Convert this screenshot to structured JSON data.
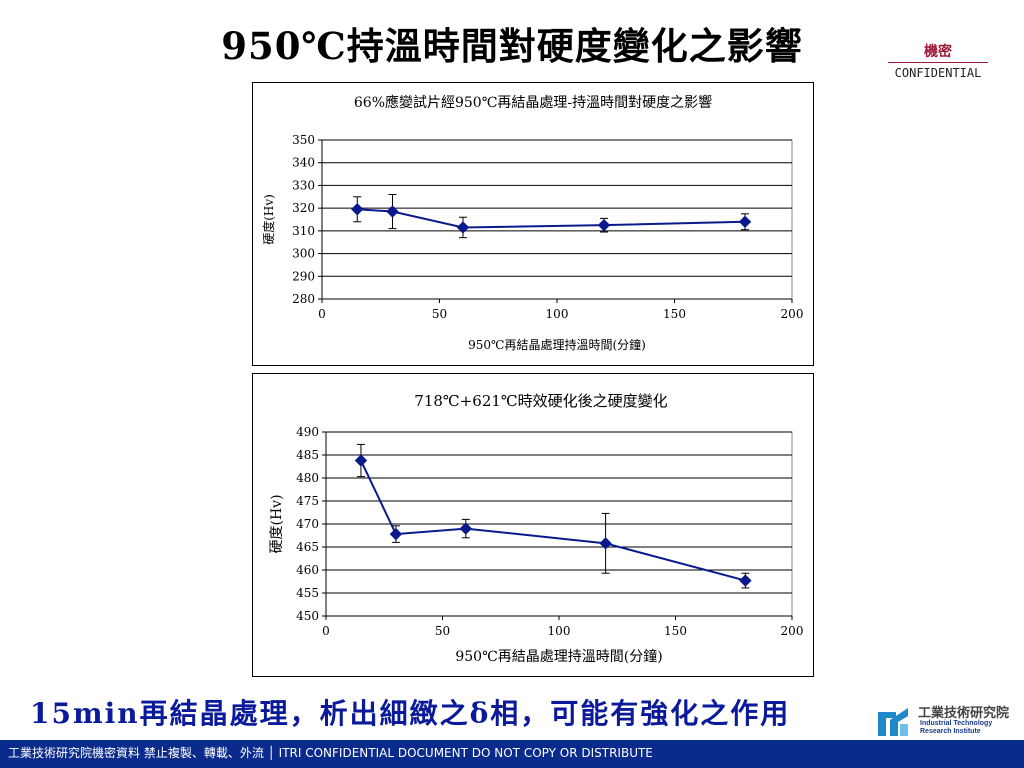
{
  "slide": {
    "title": "950℃持溫時間對硬度變化之影響",
    "confidential_cn": "機密",
    "confidential_en": "CONFIDENTIAL",
    "bottom_text": "15min再結晶處理，析出細緻之δ相，可能有強化之作用",
    "footer": "工業技術研究院機密資料 禁止複製、轉載、外流 │ ITRI  CONFIDENTIAL  DOCUMENT  DO  NOT  COPY  OR  DISTRIBUTE",
    "logo_cn": "工業技術研究院",
    "logo_en": "Industrial Technology\nResearch Institute"
  },
  "colors": {
    "series": "#0a1a8c",
    "footer_bg": "#0a2a8c",
    "bottom_text": "#0a1a9a",
    "confidential": "#9e1a3a"
  },
  "chart_data": [
    {
      "type": "scatter",
      "title": "66%應變試片經950℃再結晶處理-持溫時間對硬度之影響",
      "xlabel": "950℃再結晶處理持溫時間(分鐘)",
      "ylabel": "硬度(Hv)",
      "xlim": [
        0,
        200
      ],
      "ylim": [
        280,
        350
      ],
      "xticks": [
        0,
        50,
        100,
        150,
        200
      ],
      "yticks": [
        280,
        290,
        300,
        310,
        320,
        330,
        340,
        350
      ],
      "grid": "horizontal",
      "series": [
        {
          "x": [
            15,
            30,
            60,
            120,
            180
          ],
          "y": [
            319.5,
            318.5,
            311.5,
            312.5,
            314
          ],
          "error": [
            5.5,
            7.5,
            4.5,
            3,
            3.5
          ]
        }
      ]
    },
    {
      "type": "scatter",
      "title": "718℃+621℃時效硬化後之硬度變化",
      "xlabel": "950℃再結晶處理持溫時間(分鐘)",
      "ylabel": "硬度(Hv)",
      "xlim": [
        0,
        200
      ],
      "ylim": [
        450,
        490
      ],
      "xticks": [
        0,
        50,
        100,
        150,
        200
      ],
      "yticks": [
        450,
        455,
        460,
        465,
        470,
        475,
        480,
        485,
        490
      ],
      "grid": "horizontal",
      "series": [
        {
          "x": [
            15,
            30,
            60,
            120,
            180
          ],
          "y": [
            483.8,
            467.8,
            469,
            465.8,
            457.7
          ],
          "error": [
            3.5,
            1.8,
            2.0,
            6.5,
            1.6
          ]
        }
      ]
    }
  ]
}
